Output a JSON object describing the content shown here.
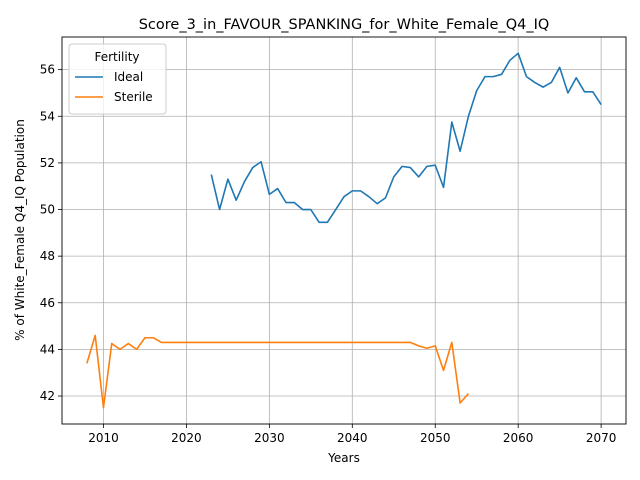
{
  "chart_data": {
    "type": "line",
    "title": "Score_3_in_FAVOUR_SPANKING_for_White_Female_Q4_IQ",
    "xlabel": "Years",
    "ylabel": "% of White_Female Q4_IQ Population",
    "xlim": [
      2005,
      2073
    ],
    "ylim": [
      40.8,
      57.4
    ],
    "xticks": [
      2010,
      2020,
      2030,
      2040,
      2050,
      2060,
      2070
    ],
    "yticks": [
      42,
      44,
      46,
      48,
      50,
      52,
      54,
      56
    ],
    "grid": true,
    "legend": {
      "title": "Fertility",
      "placement": "top-left"
    },
    "series": [
      {
        "name": "Ideal",
        "color": "#1f77b4",
        "x": [
          2023,
          2024,
          2025,
          2026,
          2027,
          2028,
          2029,
          2030,
          2031,
          2032,
          2033,
          2034,
          2035,
          2036,
          2037,
          2038,
          2039,
          2040,
          2041,
          2042,
          2043,
          2044,
          2045,
          2046,
          2047,
          2048,
          2049,
          2050,
          2051,
          2052,
          2053,
          2054,
          2055,
          2056,
          2057,
          2058,
          2059,
          2060,
          2061,
          2062,
          2063,
          2064,
          2065,
          2066,
          2067,
          2068,
          2069,
          2070
        ],
        "y": [
          51.5,
          50.0,
          51.3,
          50.4,
          51.2,
          51.8,
          52.05,
          50.65,
          50.9,
          50.3,
          50.3,
          50.0,
          50.0,
          49.45,
          49.45,
          50.0,
          50.55,
          50.8,
          50.8,
          50.55,
          50.25,
          50.5,
          51.4,
          51.85,
          51.8,
          51.4,
          51.85,
          51.9,
          50.95,
          53.75,
          52.5,
          54.0,
          55.1,
          55.7,
          55.7,
          55.8,
          56.4,
          56.7,
          55.7,
          55.45,
          55.25,
          55.45,
          56.1,
          55.0,
          55.65,
          55.05,
          55.05,
          54.5
        ]
      },
      {
        "name": "Sterile",
        "color": "#ff7f0e",
        "x": [
          2008,
          2009,
          2010,
          2011,
          2012,
          2013,
          2014,
          2015,
          2016,
          2017,
          2018,
          2019,
          2020,
          2021,
          2022,
          2023,
          2024,
          2025,
          2026,
          2027,
          2028,
          2029,
          2030,
          2031,
          2032,
          2033,
          2034,
          2035,
          2036,
          2037,
          2038,
          2039,
          2040,
          2041,
          2042,
          2043,
          2044,
          2045,
          2046,
          2047,
          2048,
          2049,
          2050,
          2051,
          2052,
          2053,
          2054
        ],
        "y": [
          43.4,
          44.6,
          41.5,
          44.25,
          44.0,
          44.25,
          44.0,
          44.5,
          44.5,
          44.3,
          44.3,
          44.3,
          44.3,
          44.3,
          44.3,
          44.3,
          44.3,
          44.3,
          44.3,
          44.3,
          44.3,
          44.3,
          44.3,
          44.3,
          44.3,
          44.3,
          44.3,
          44.3,
          44.3,
          44.3,
          44.3,
          44.3,
          44.3,
          44.3,
          44.3,
          44.3,
          44.3,
          44.3,
          44.3,
          44.3,
          44.15,
          44.05,
          44.15,
          43.1,
          44.3,
          41.7,
          42.1
        ]
      }
    ]
  }
}
